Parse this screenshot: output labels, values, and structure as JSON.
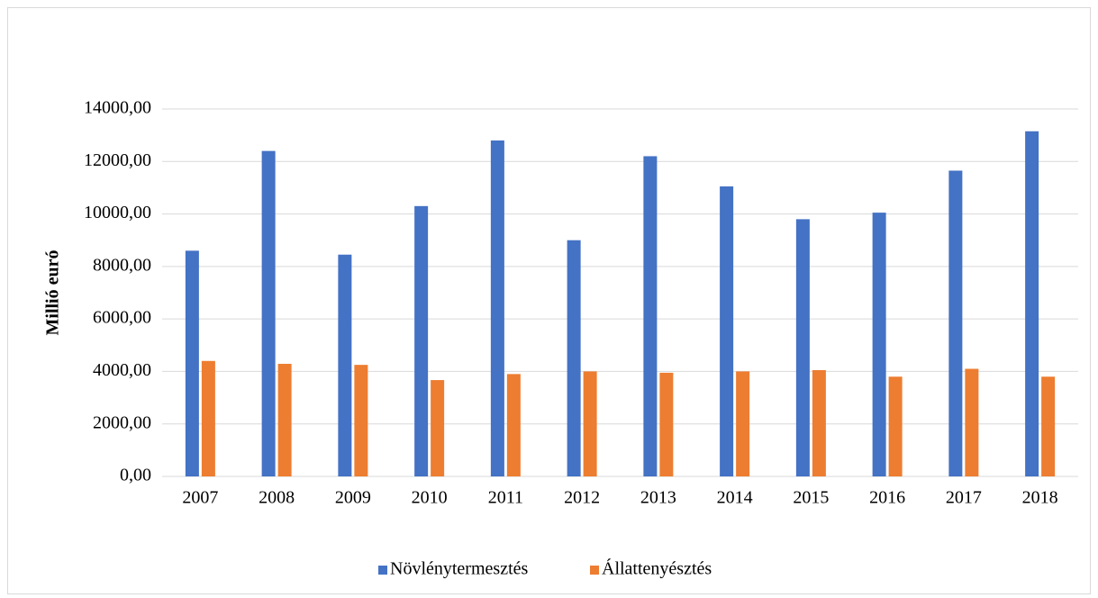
{
  "chart_data": {
    "type": "bar",
    "y_label": "Millió euró",
    "categories": [
      "2007",
      "2008",
      "2009",
      "2010",
      "2011",
      "2012",
      "2013",
      "2014",
      "2015",
      "2016",
      "2017",
      "2018"
    ],
    "series": [
      {
        "name": "Növlénytermesztés",
        "color": "#4472c4",
        "values": [
          8600,
          12400,
          8450,
          10300,
          12800,
          9000,
          12200,
          11050,
          9800,
          10050,
          11650,
          13150
        ]
      },
      {
        "name": "Állattenyésztés",
        "color": "#ed7d31",
        "values": [
          4400,
          4290,
          4250,
          3670,
          3900,
          4000,
          3950,
          4000,
          4050,
          3800,
          4100,
          3800
        ]
      }
    ],
    "ylim": [
      0,
      14000
    ],
    "yticks": [
      {
        "value": 0,
        "label": "0,00"
      },
      {
        "value": 2000,
        "label": "2000,00"
      },
      {
        "value": 4000,
        "label": "4000,00"
      },
      {
        "value": 6000,
        "label": "6000,00"
      },
      {
        "value": 8000,
        "label": "8000,00"
      },
      {
        "value": 10000,
        "label": "10000,00"
      },
      {
        "value": 12000,
        "label": "12000,00"
      },
      {
        "value": 14000,
        "label": "14000,00"
      }
    ],
    "grid": true,
    "legend": "bottom"
  }
}
